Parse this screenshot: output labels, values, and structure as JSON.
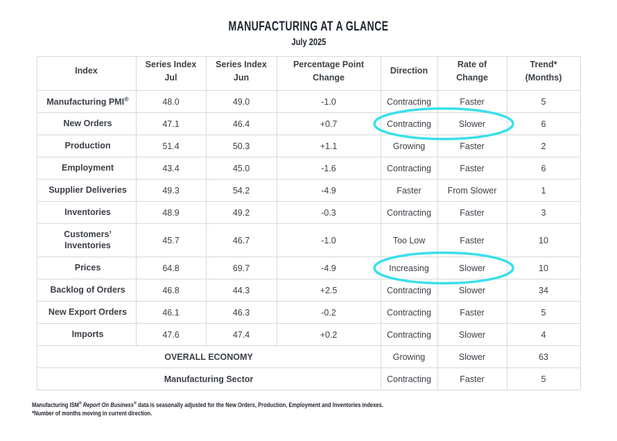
{
  "title": "MANUFACTURING AT A GLANCE",
  "subtitle": "July 2025",
  "accent_color": "#38E0EC",
  "table": {
    "headers": [
      [
        "Index"
      ],
      [
        "Series Index",
        "Jul"
      ],
      [
        "Series Index",
        "Jun"
      ],
      [
        "Percentage Point",
        "Change"
      ],
      [
        "Direction"
      ],
      [
        "Rate of",
        "Change"
      ],
      [
        "Trend*",
        "(Months)"
      ]
    ],
    "rows": [
      {
        "index": "Manufacturing PMI",
        "index_sup": "®",
        "jul": "48.0",
        "jun": "49.0",
        "change": "-1.0",
        "direction": "Contracting",
        "rate": "Faster",
        "trend": "5"
      },
      {
        "index": "New Orders",
        "jul": "47.1",
        "jun": "46.4",
        "change": "+0.7",
        "direction": "Contracting",
        "rate": "Slower",
        "trend": "6",
        "highlight": true
      },
      {
        "index": "Production",
        "jul": "51.4",
        "jun": "50.3",
        "change": "+1.1",
        "direction": "Growing",
        "rate": "Faster",
        "trend": "2"
      },
      {
        "index": "Employment",
        "jul": "43.4",
        "jun": "45.0",
        "change": "-1.6",
        "direction": "Contracting",
        "rate": "Faster",
        "trend": "6"
      },
      {
        "index": "Supplier Deliveries",
        "jul": "49.3",
        "jun": "54.2",
        "change": "-4.9",
        "direction": "Faster",
        "rate": "From Slower",
        "trend": "1"
      },
      {
        "index": "Inventories",
        "jul": "48.9",
        "jun": "49.2",
        "change": "-0.3",
        "direction": "Contracting",
        "rate": "Faster",
        "trend": "3"
      },
      {
        "index": "Customers’ Inventories",
        "jul": "45.7",
        "jun": "46.7",
        "change": "-1.0",
        "direction": "Too Low",
        "rate": "Faster",
        "trend": "10",
        "tall": true
      },
      {
        "index": "Prices",
        "jul": "64.8",
        "jun": "69.7",
        "change": "-4.9",
        "direction": "Increasing",
        "rate": "Slower",
        "trend": "10",
        "highlight": true
      },
      {
        "index": "Backlog of Orders",
        "jul": "46.8",
        "jun": "44.3",
        "change": "+2.5",
        "direction": "Contracting",
        "rate": "Slower",
        "trend": "34"
      },
      {
        "index": "New Export Orders",
        "jul": "46.1",
        "jun": "46.3",
        "change": "-0.2",
        "direction": "Contracting",
        "rate": "Faster",
        "trend": "5"
      },
      {
        "index": "Imports",
        "jul": "47.6",
        "jun": "47.4",
        "change": "+0.2",
        "direction": "Contracting",
        "rate": "Slower",
        "trend": "4"
      }
    ],
    "summary_rows": [
      {
        "label": "OVERALL ECONOMY",
        "direction": "Growing",
        "rate": "Slower",
        "trend": "63"
      },
      {
        "label": "Manufacturing Sector",
        "direction": "Contracting",
        "rate": "Faster",
        "trend": "5"
      }
    ]
  },
  "footnotes": {
    "source_pre": "Manufacturing ISM",
    "source_sup1": "®",
    "source_italic": " Report On Business",
    "source_sup2": "®",
    "source_post": " data is seasonally adjusted for the New Orders, Production, Employment and Inventories indexes.",
    "trend_note": "*Number of months moving in current direction."
  }
}
